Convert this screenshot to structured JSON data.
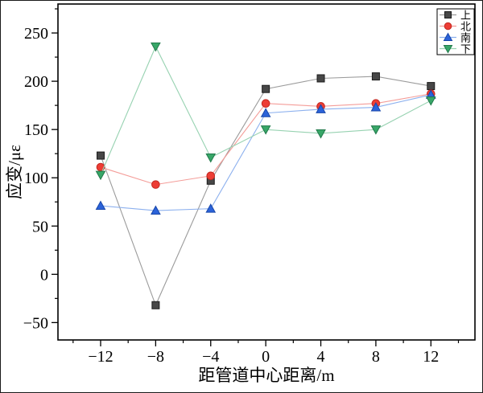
{
  "chart_data": {
    "type": "line",
    "title": "",
    "xlabel": "距管道中心距离/m",
    "ylabel": "应变/με",
    "x": [
      -12,
      -8,
      -4,
      0,
      4,
      8,
      12
    ],
    "series": [
      {
        "name": "上",
        "marker": "square",
        "marker_color": "#474747",
        "edge_color": "#1c1c1c",
        "line_color": "#9b9b9b",
        "values": [
          123,
          -32,
          97,
          192,
          203,
          205,
          195
        ]
      },
      {
        "name": "北",
        "marker": "circle",
        "marker_color": "#ed3d35",
        "edge_color": "#c32820",
        "line_color": "#f49c98",
        "values": [
          111,
          93,
          102,
          177,
          174,
          177,
          187
        ]
      },
      {
        "name": "南",
        "marker": "triangle-up",
        "marker_color": "#2b62d9",
        "edge_color": "#1847a9",
        "line_color": "#8cb0ee",
        "values": [
          71,
          66,
          68,
          167,
          171,
          173,
          186
        ]
      },
      {
        "name": "下",
        "marker": "triangle-down",
        "marker_color": "#38a768",
        "edge_color": "#20794a",
        "line_color": "#97d2b1",
        "values": [
          103,
          236,
          121,
          150,
          146,
          150,
          180
        ]
      }
    ],
    "xlim": [
      -15.1,
      15.2
    ],
    "ylim": [
      -68,
      280
    ],
    "x_ticks_major": [
      -12,
      -8,
      -4,
      0,
      4,
      8,
      12
    ],
    "x_ticks_minor": [
      -14,
      -10,
      -6,
      -2,
      2,
      6,
      10,
      14
    ],
    "y_ticks_major": [
      -50,
      0,
      50,
      100,
      150,
      200,
      250
    ],
    "y_ticks_minor": [
      -25,
      25,
      75,
      125,
      175,
      225,
      275
    ],
    "grid": false,
    "legend_position": "top-right",
    "frame_color": "#000000",
    "background_color": "#ffffff"
  }
}
